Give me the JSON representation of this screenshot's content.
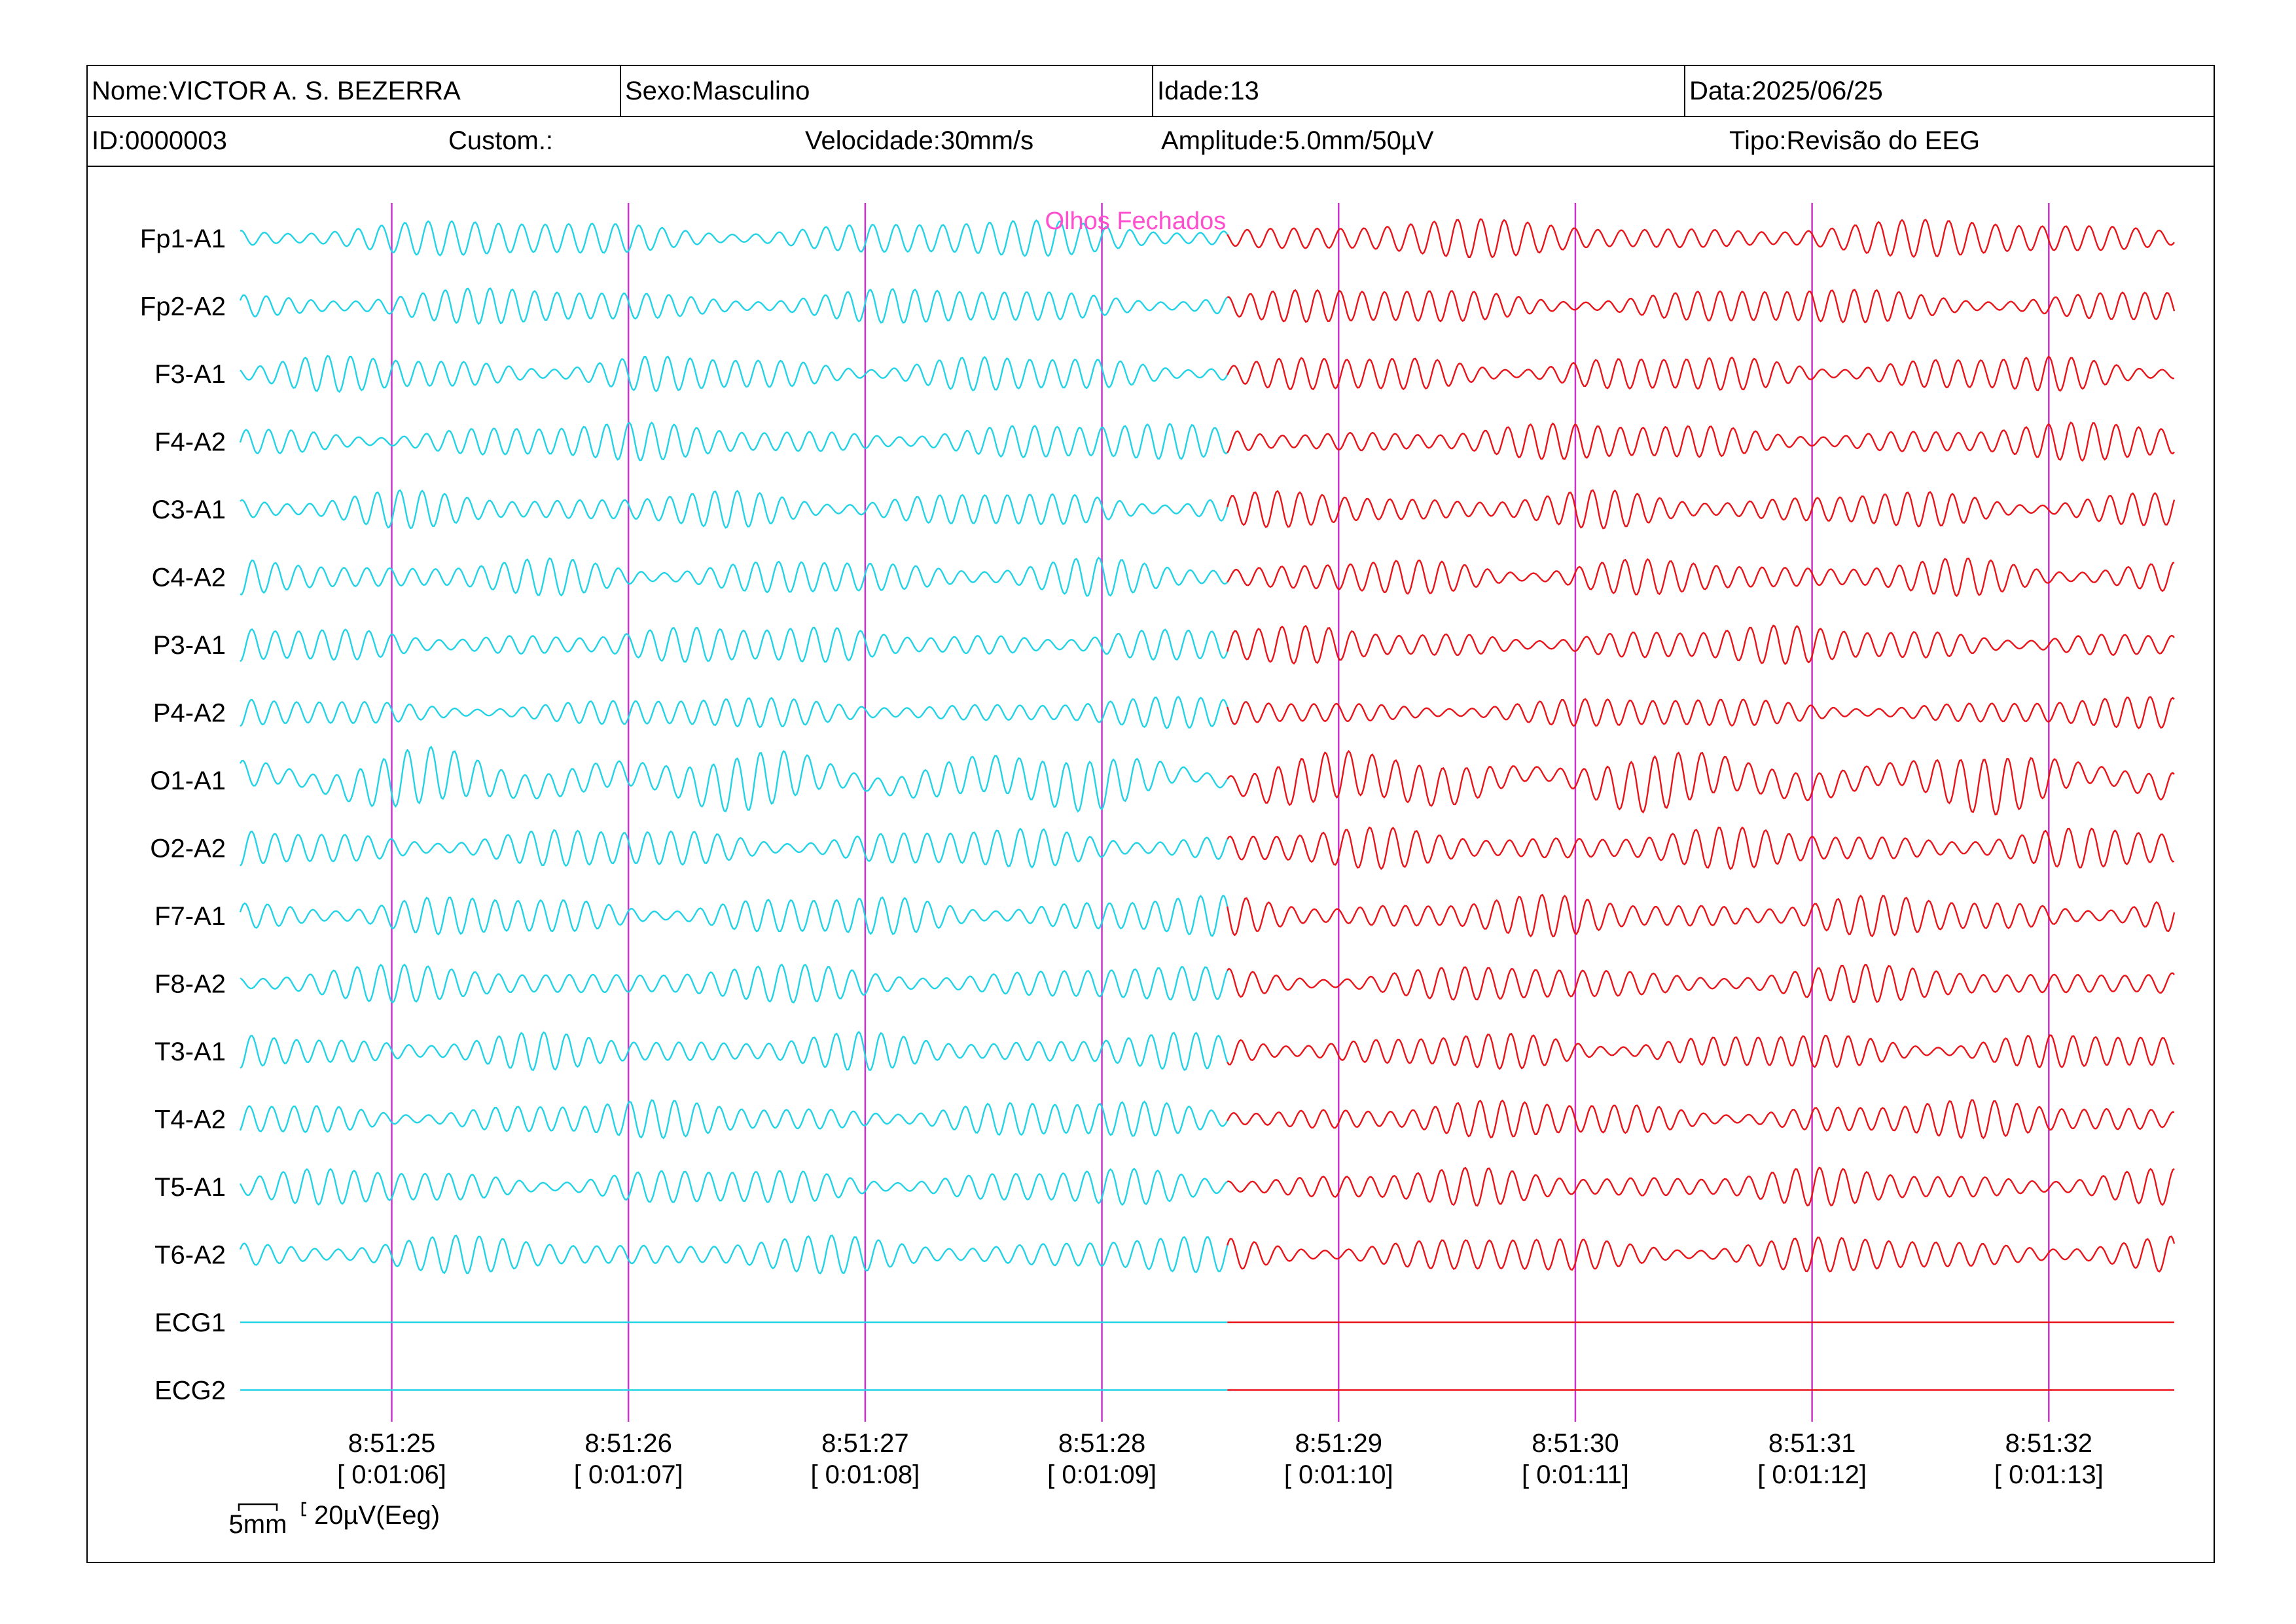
{
  "header": {
    "name": "Nome:VICTOR A. S. BEZERRA",
    "sex": "Sexo:Masculino",
    "age": "Idade:13",
    "date": "Data:2025/06/25",
    "id": "ID:0000003",
    "custom": "Custom.:",
    "speed": "Velocidade:30mm/s",
    "amplitude": "Amplitude:5.0mm/50µV",
    "type": "Tipo:Revisão do EEG"
  },
  "colors": {
    "trace_before": "#22d3e6",
    "trace_after": "#e8141a",
    "marker": "#d633d6",
    "annotation": "#ff4fcf",
    "grid": "#cc33cc"
  },
  "chart_data": {
    "type": "line",
    "title": "",
    "x_unit": "s",
    "x_range": [
      0,
      8.17
    ],
    "event": {
      "label": "Olhos Fechados",
      "time": 4.17
    },
    "channels": [
      {
        "name": "Fp1-A1",
        "amp": 0.55
      },
      {
        "name": "Fp2-A2",
        "amp": 0.55
      },
      {
        "name": "F3-A1",
        "amp": 0.55
      },
      {
        "name": "F4-A2",
        "amp": 0.55
      },
      {
        "name": "C3-A1",
        "amp": 0.55
      },
      {
        "name": "C4-A2",
        "amp": 0.55
      },
      {
        "name": "P3-A1",
        "amp": 0.55
      },
      {
        "name": "P4-A2",
        "amp": 0.45
      },
      {
        "name": "O1-A1",
        "amp": 0.8
      },
      {
        "name": "O2-A2",
        "amp": 0.6
      },
      {
        "name": "F7-A1",
        "amp": 0.6
      },
      {
        "name": "F8-A2",
        "amp": 0.55
      },
      {
        "name": "T3-A1",
        "amp": 0.55
      },
      {
        "name": "T4-A2",
        "amp": 0.55
      },
      {
        "name": "T5-A1",
        "amp": 0.55
      },
      {
        "name": "T6-A2",
        "amp": 0.55
      },
      {
        "name": "ECG1",
        "amp": 0
      },
      {
        "name": "ECG2",
        "amp": 0
      }
    ],
    "time_marks": [
      {
        "clock": "8:51:25",
        "elapsed": "[ 0:01:06]",
        "t": 0.64
      },
      {
        "clock": "8:51:26",
        "elapsed": "[ 0:01:07]",
        "t": 1.64
      },
      {
        "clock": "8:51:27",
        "elapsed": "[ 0:01:08]",
        "t": 2.64
      },
      {
        "clock": "8:51:28",
        "elapsed": "[ 0:01:09]",
        "t": 3.64
      },
      {
        "clock": "8:51:29",
        "elapsed": "[ 0:01:10]",
        "t": 4.64
      },
      {
        "clock": "8:51:30",
        "elapsed": "[ 0:01:11]",
        "t": 5.64
      },
      {
        "clock": "8:51:31",
        "elapsed": "[ 0:01:12]",
        "t": 6.64
      },
      {
        "clock": "8:51:32",
        "elapsed": "[ 0:01:13]",
        "t": 7.64
      }
    ],
    "scale_bar": {
      "time_label": "5mm",
      "amp_label": "20µV(Eeg)"
    }
  }
}
